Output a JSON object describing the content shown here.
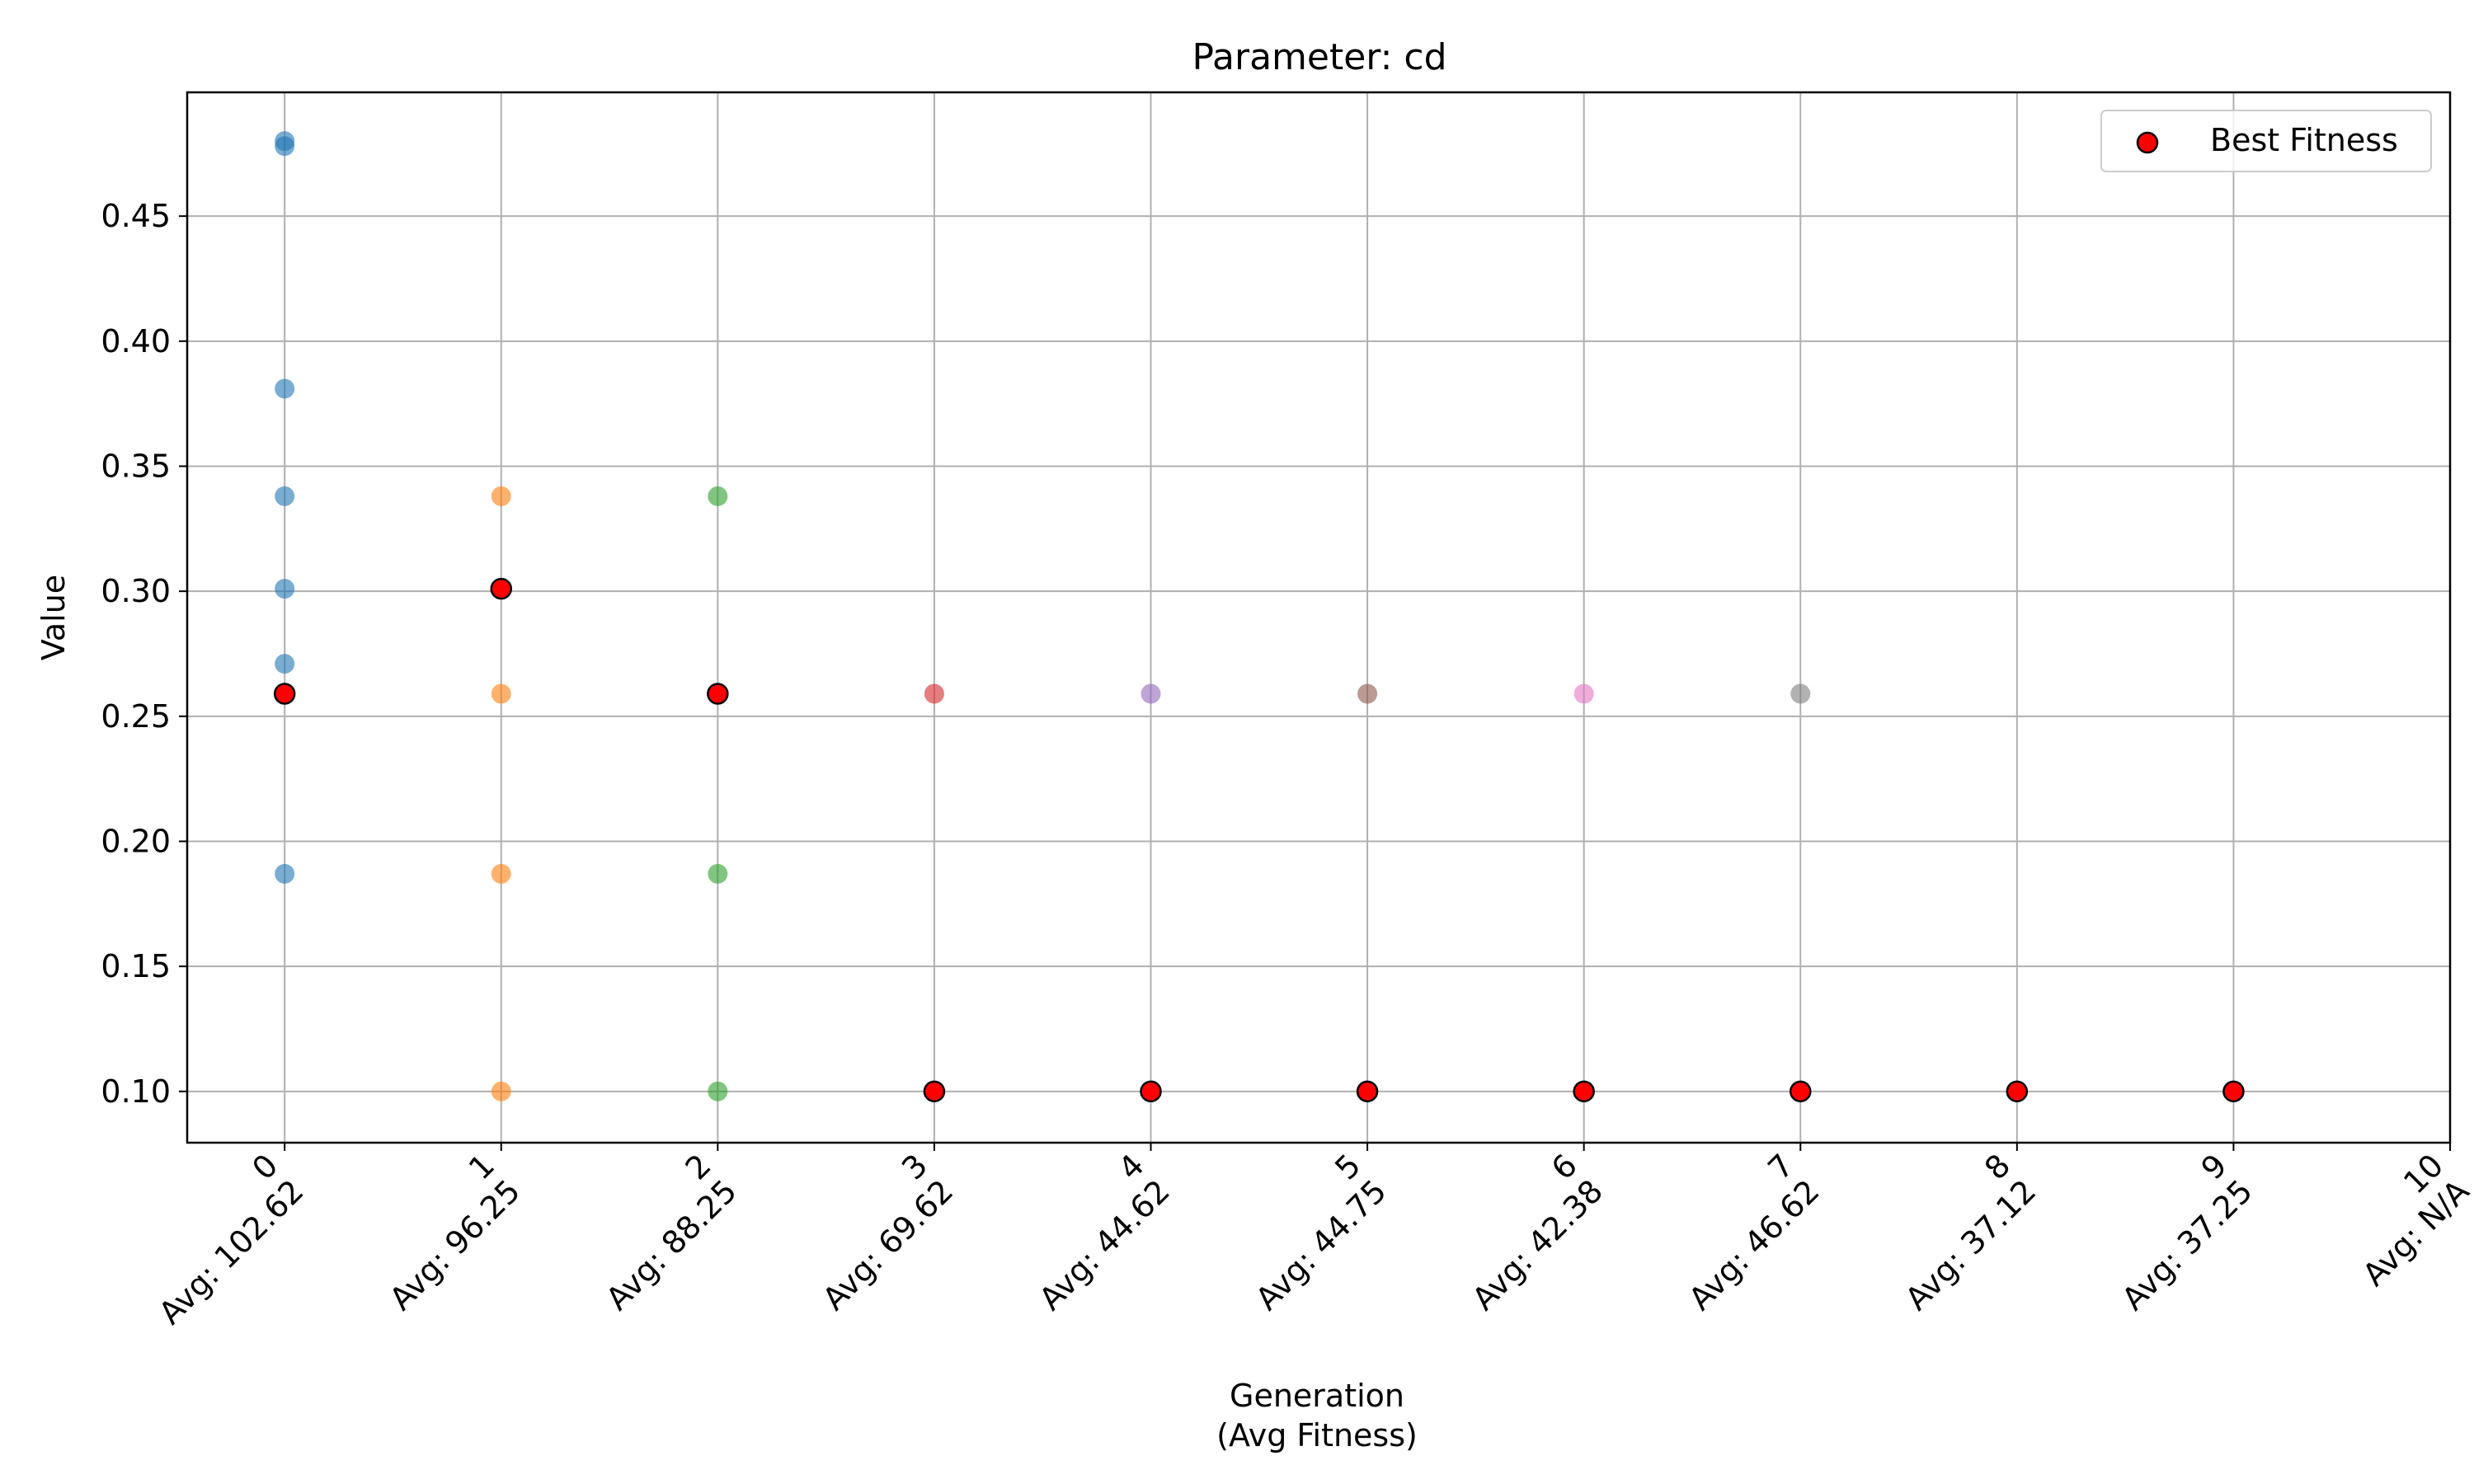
{
  "chart_data": {
    "type": "scatter",
    "title": "Parameter: cd",
    "xlabel_line1": "Generation",
    "xlabel_line2": "(Avg Fitness)",
    "ylabel": "Value",
    "xlim": [
      -0.45,
      10.0
    ],
    "ylim": [
      0.0795,
      0.4995
    ],
    "x_ticks": [
      {
        "gen": "0",
        "avg": "Avg: 102.62"
      },
      {
        "gen": "1",
        "avg": "Avg: 96.25"
      },
      {
        "gen": "2",
        "avg": "Avg: 88.25"
      },
      {
        "gen": "3",
        "avg": "Avg: 69.62"
      },
      {
        "gen": "4",
        "avg": "Avg: 44.62"
      },
      {
        "gen": "5",
        "avg": "Avg: 44.75"
      },
      {
        "gen": "6",
        "avg": "Avg: 42.38"
      },
      {
        "gen": "7",
        "avg": "Avg: 46.62"
      },
      {
        "gen": "8",
        "avg": "Avg: 37.12"
      },
      {
        "gen": "9",
        "avg": "Avg: 37.25"
      },
      {
        "gen": "10",
        "avg": "Avg: N/A"
      }
    ],
    "y_ticks": [
      "0.10",
      "0.15",
      "0.20",
      "0.25",
      "0.30",
      "0.35",
      "0.40",
      "0.45"
    ],
    "grid": true,
    "legend_position": "top-right",
    "generations": [
      {
        "gen": 0,
        "color": "#1f77b4",
        "values": [
          0.48,
          0.478,
          0.381,
          0.338,
          0.301,
          0.271,
          0.259,
          0.187
        ]
      },
      {
        "gen": 1,
        "color": "#ff7f0e",
        "values": [
          0.338,
          0.301,
          0.259,
          0.187,
          0.1
        ]
      },
      {
        "gen": 2,
        "color": "#2ca02c",
        "values": [
          0.338,
          0.259,
          0.187,
          0.1
        ]
      },
      {
        "gen": 3,
        "color": "#d62728",
        "values": [
          0.259,
          0.1
        ]
      },
      {
        "gen": 4,
        "color": "#9467bd",
        "values": [
          0.259,
          0.1
        ]
      },
      {
        "gen": 5,
        "color": "#8c564b",
        "values": [
          0.259,
          0.1
        ]
      },
      {
        "gen": 6,
        "color": "#e377c2",
        "values": [
          0.259,
          0.1
        ]
      },
      {
        "gen": 7,
        "color": "#7f7f7f",
        "values": [
          0.259,
          0.1
        ]
      },
      {
        "gen": 8,
        "color": "#bcbd22",
        "values": [
          0.1
        ]
      },
      {
        "gen": 9,
        "color": "#17becf",
        "values": [
          0.1
        ]
      }
    ],
    "best_fitness": {
      "name": "Best Fitness",
      "color": "#ff0000",
      "points": [
        {
          "x": 0,
          "y": 0.259
        },
        {
          "x": 1,
          "y": 0.301
        },
        {
          "x": 2,
          "y": 0.259
        },
        {
          "x": 3,
          "y": 0.1
        },
        {
          "x": 4,
          "y": 0.1
        },
        {
          "x": 5,
          "y": 0.1
        },
        {
          "x": 6,
          "y": 0.1
        },
        {
          "x": 7,
          "y": 0.1
        },
        {
          "x": 8,
          "y": 0.1
        },
        {
          "x": 9,
          "y": 0.1
        }
      ]
    }
  }
}
